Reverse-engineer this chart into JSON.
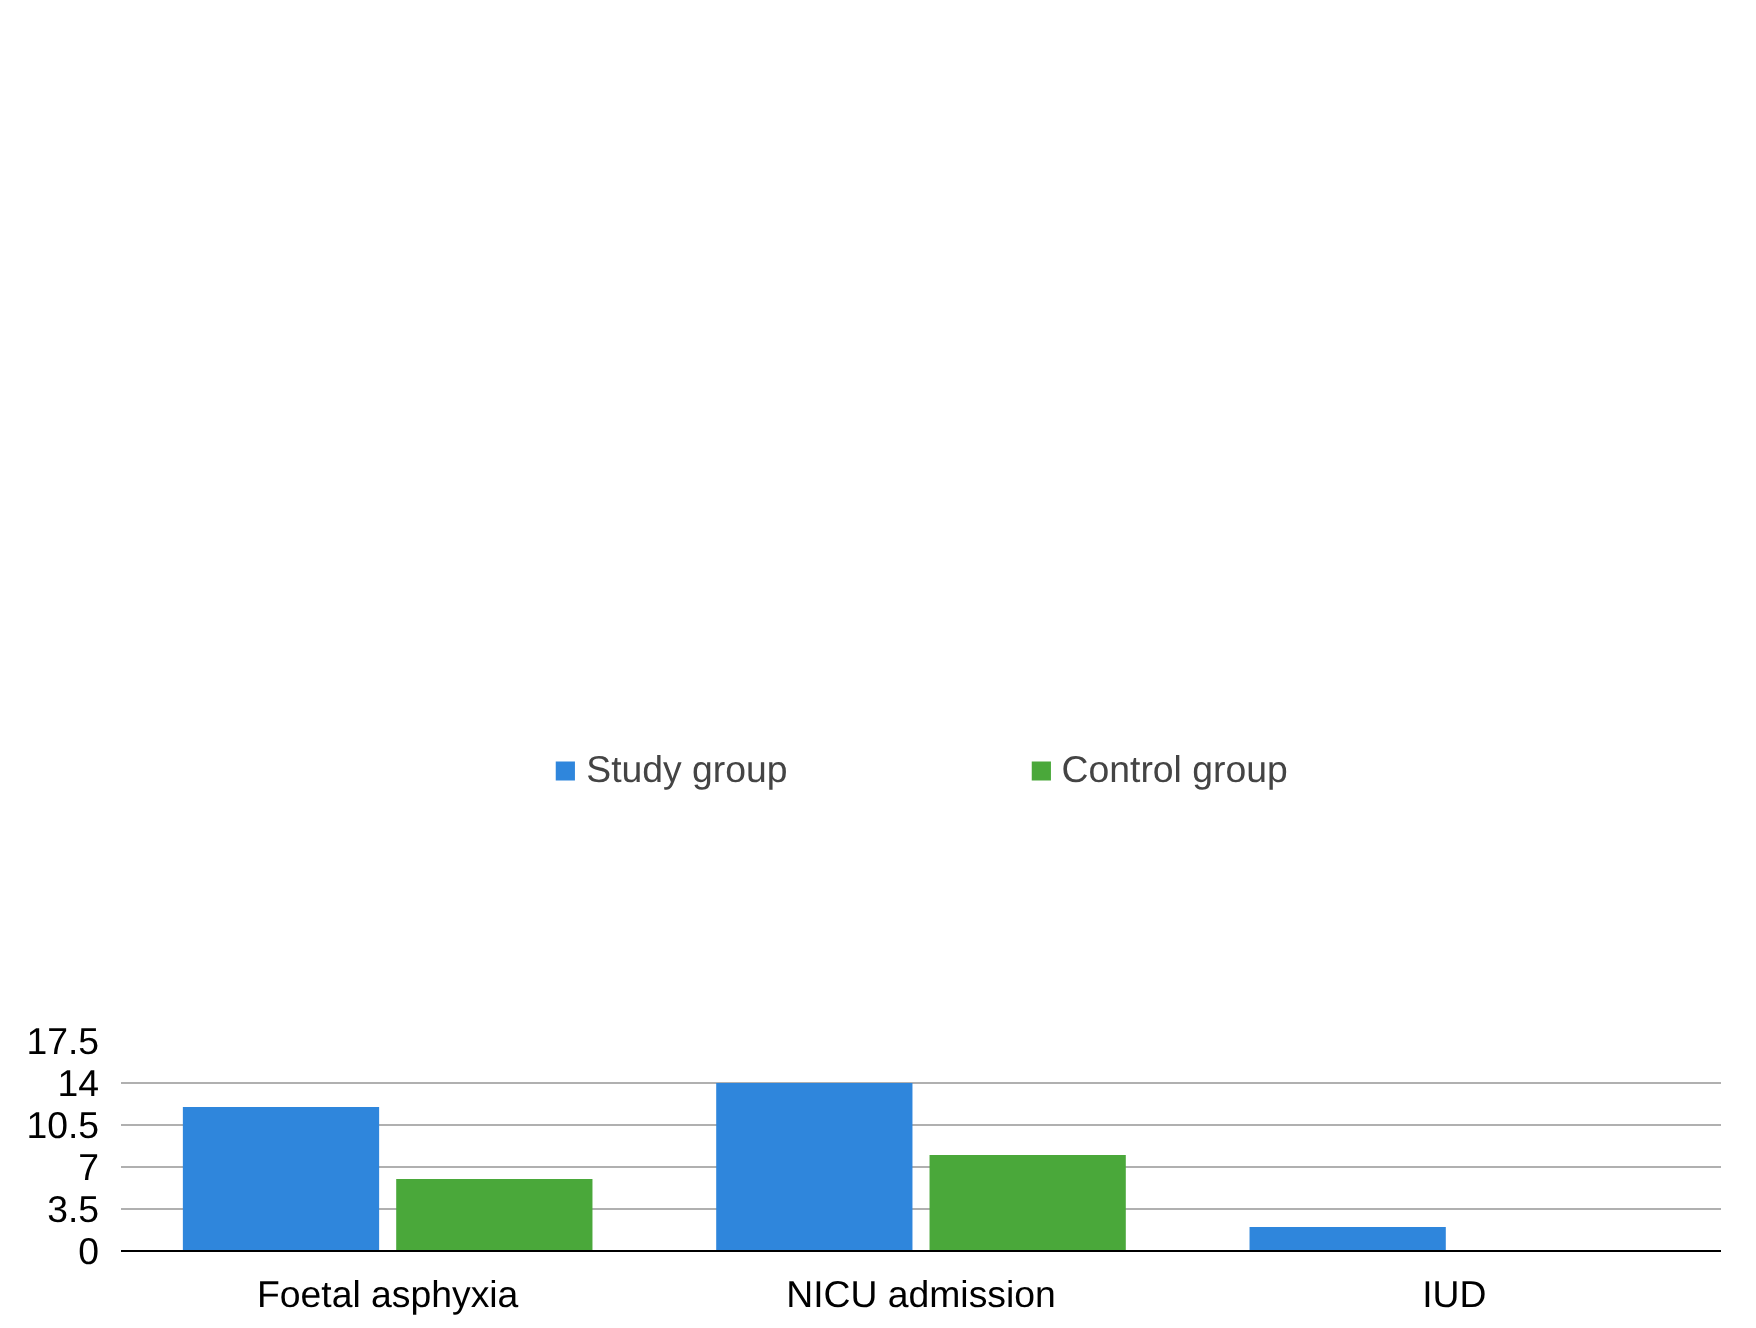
{
  "chart_data": {
    "type": "bar",
    "categories": [
      "Foetal asphyxia",
      "NICU admission",
      "IUD"
    ],
    "series": [
      {
        "name": "Study group",
        "color": "#2f86dc",
        "values": [
          12,
          14,
          2
        ]
      },
      {
        "name": "Control group",
        "color": "#4aa83a",
        "values": [
          6,
          8,
          0
        ]
      }
    ],
    "ylim": [
      0,
      17.5
    ],
    "yticks": [
      0,
      3.5,
      7,
      10.5,
      14,
      17.5
    ],
    "grid": "y",
    "legend": "top"
  }
}
